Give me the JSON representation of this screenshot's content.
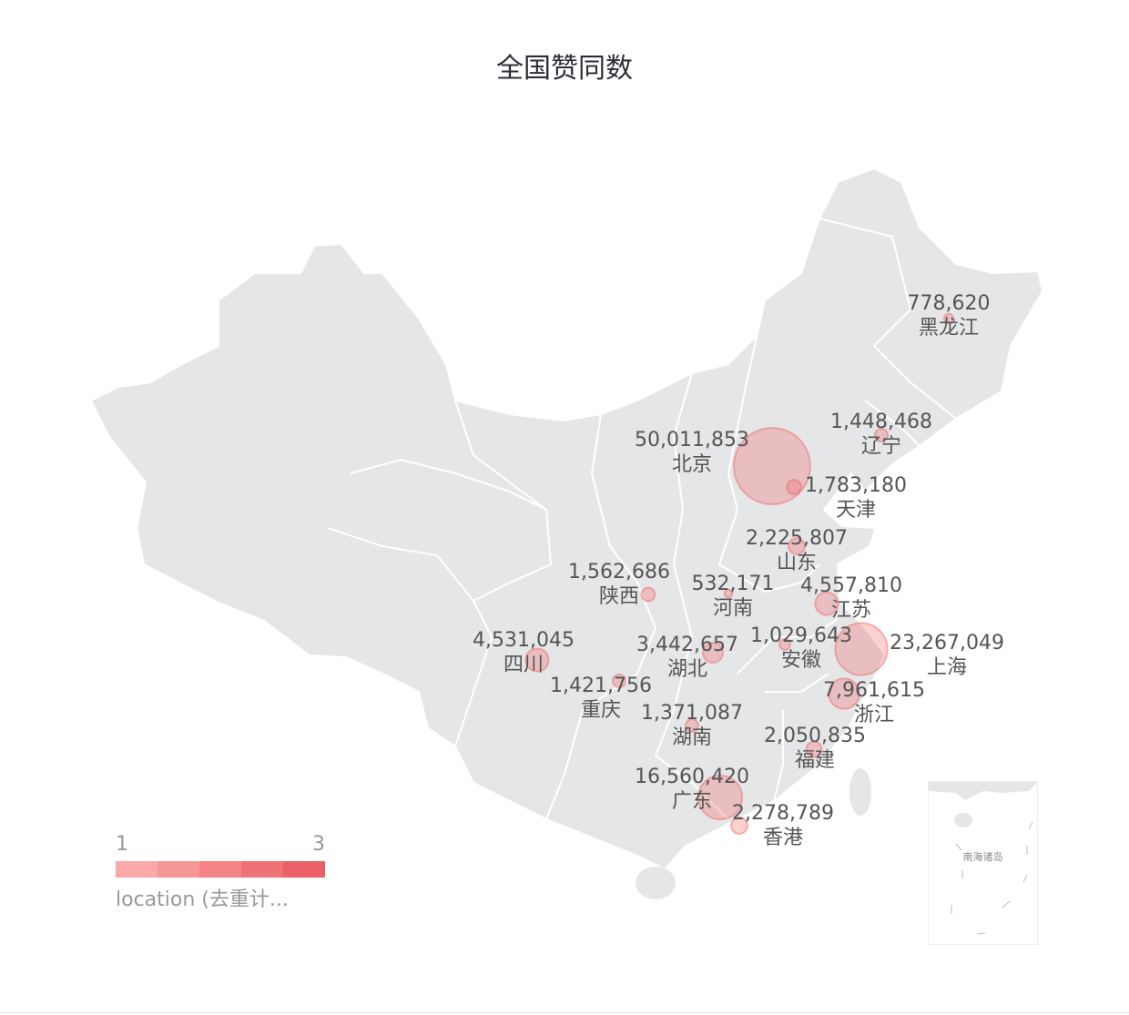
{
  "chart_data": {
    "type": "scatter",
    "title": "全国赞同数",
    "map": "China provinces",
    "points": [
      {
        "name": "北京",
        "value": 50011853
      },
      {
        "name": "上海",
        "value": 23267049
      },
      {
        "name": "广东",
        "value": 16560420
      },
      {
        "name": "浙江",
        "value": 7961615
      },
      {
        "name": "江苏",
        "value": 4557810
      },
      {
        "name": "四川",
        "value": 4531045
      },
      {
        "name": "湖北",
        "value": 3442657
      },
      {
        "name": "香港",
        "value": 2278789
      },
      {
        "name": "山东",
        "value": 2225807
      },
      {
        "name": "福建",
        "value": 2050835
      },
      {
        "name": "天津",
        "value": 1783180
      },
      {
        "name": "陕西",
        "value": 1562686
      },
      {
        "name": "辽宁",
        "value": 1448468
      },
      {
        "name": "重庆",
        "value": 1421756
      },
      {
        "name": "湖南",
        "value": 1371087
      },
      {
        "name": "安徽",
        "value": 1029643
      },
      {
        "name": "黑龙江",
        "value": 778620
      },
      {
        "name": "河南",
        "value": 532171
      }
    ],
    "legend": {
      "min_label": "1",
      "max_label": "3",
      "field_label": "location (去重计...",
      "colors": [
        "#f9a9a9",
        "#f79696",
        "#f48486",
        "#f07276",
        "#ec6168"
      ],
      "placement": "bottom-left"
    },
    "inset_label": "南海诸岛",
    "colors": {
      "land": "#e5e6e8",
      "border": "#ffffff",
      "bubble": "#f07070"
    }
  }
}
